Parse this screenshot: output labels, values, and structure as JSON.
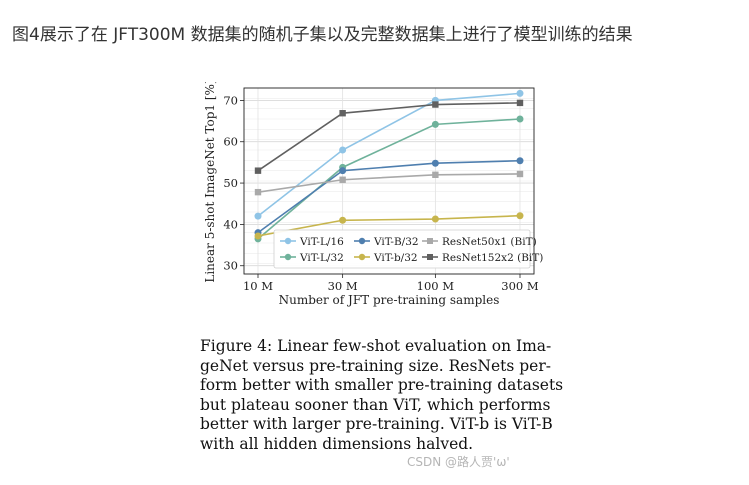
{
  "page_heading": "图4展示了在 JFT300M 数据集的随机子集以及完整数据集上进行了模型训练的结果",
  "chart_data": {
    "type": "line",
    "x_scale": "log",
    "categories": [
      "10 M",
      "30 M",
      "100 M",
      "300 M"
    ],
    "x": [
      10,
      30,
      100,
      300
    ],
    "xlabel": "Number of JFT pre-training samples",
    "ylabel": "Linear 5-shot ImageNet Top1 [%]",
    "ylim": [
      28,
      73
    ],
    "yticks": [
      30,
      40,
      50,
      60,
      70
    ],
    "grid": true,
    "legend_position": "bottom-right",
    "legend_columns": 3,
    "series": [
      {
        "name": "ViT-L/16",
        "color": "#8fc4e6",
        "marker": "circle",
        "values": [
          42.0,
          58.0,
          70.0,
          71.7
        ]
      },
      {
        "name": "ViT-L/32",
        "color": "#6fb29b",
        "marker": "circle",
        "values": [
          36.5,
          53.8,
          64.2,
          65.5
        ]
      },
      {
        "name": "ViT-B/32",
        "color": "#4f7faf",
        "marker": "circle",
        "values": [
          38.0,
          53.0,
          54.8,
          55.4
        ]
      },
      {
        "name": "ViT-b/32",
        "color": "#c7b54d",
        "marker": "circle",
        "values": [
          37.2,
          41.0,
          41.3,
          42.1
        ]
      },
      {
        "name": "ResNet50x1 (BiT)",
        "color": "#a9a9a9",
        "marker": "square",
        "values": [
          47.8,
          50.8,
          52.0,
          52.2
        ]
      },
      {
        "name": "ResNet152x2 (BiT)",
        "color": "#606060",
        "marker": "square",
        "values": [
          53.0,
          66.9,
          69.0,
          69.4
        ]
      }
    ]
  },
  "caption_lines": [
    "Figure 4:  Linear few-shot evaluation on Ima-",
    "geNet versus pre-training size.  ResNets per-",
    "form better with smaller pre-training datasets",
    "but plateau sooner than ViT, which performs",
    "better with larger pre-training.  ViT-b is ViT-B",
    "with all hidden dimensions halved."
  ],
  "watermark": "CSDN @路人贾'ω'"
}
